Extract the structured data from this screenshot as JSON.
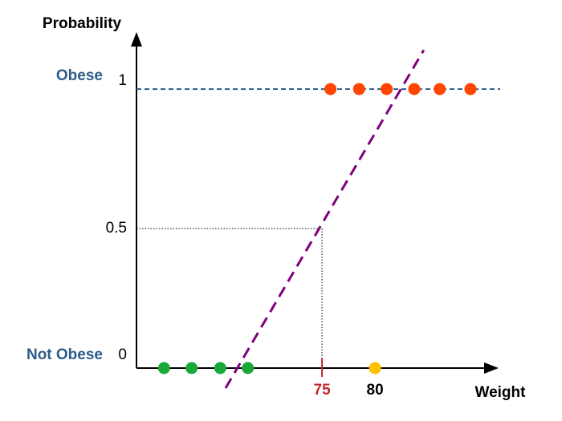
{
  "chart_data": {
    "type": "scatter",
    "y_axis_title": "Probability",
    "x_axis_title": "Weight",
    "xlim": [
      57.5,
      91.2
    ],
    "ylim": [
      0,
      1.19
    ],
    "xticks": [
      75,
      80
    ],
    "xtick_label_colors": [
      "#c0272d",
      "#000000"
    ],
    "yticks": [
      0,
      0.5,
      1
    ],
    "class_labels": [
      {
        "value": 1,
        "label": "Obese"
      },
      {
        "value": 0,
        "label": "Not Obese"
      }
    ],
    "class_label_color": "#2e5c8a",
    "class_line_color": "#2e5c8a",
    "series": [
      {
        "color": "#1aa83a",
        "x": [
          60.1,
          62.7,
          65.4,
          68.0
        ],
        "values": [
          0,
          0,
          0,
          0
        ]
      },
      {
        "color": "#ff4500",
        "x": [
          75.8,
          78.5,
          81.1,
          83.7,
          86.1,
          89.0
        ],
        "values": [
          1,
          1,
          1,
          1,
          1,
          1
        ]
      },
      {
        "color": "#ffc000",
        "x": [
          80
        ],
        "values": [
          0
        ]
      }
    ],
    "fit_line": {
      "color": "#800080",
      "x": [
        65.9,
        84.6
      ],
      "values": [
        -0.072,
        1.14
      ]
    }
  }
}
